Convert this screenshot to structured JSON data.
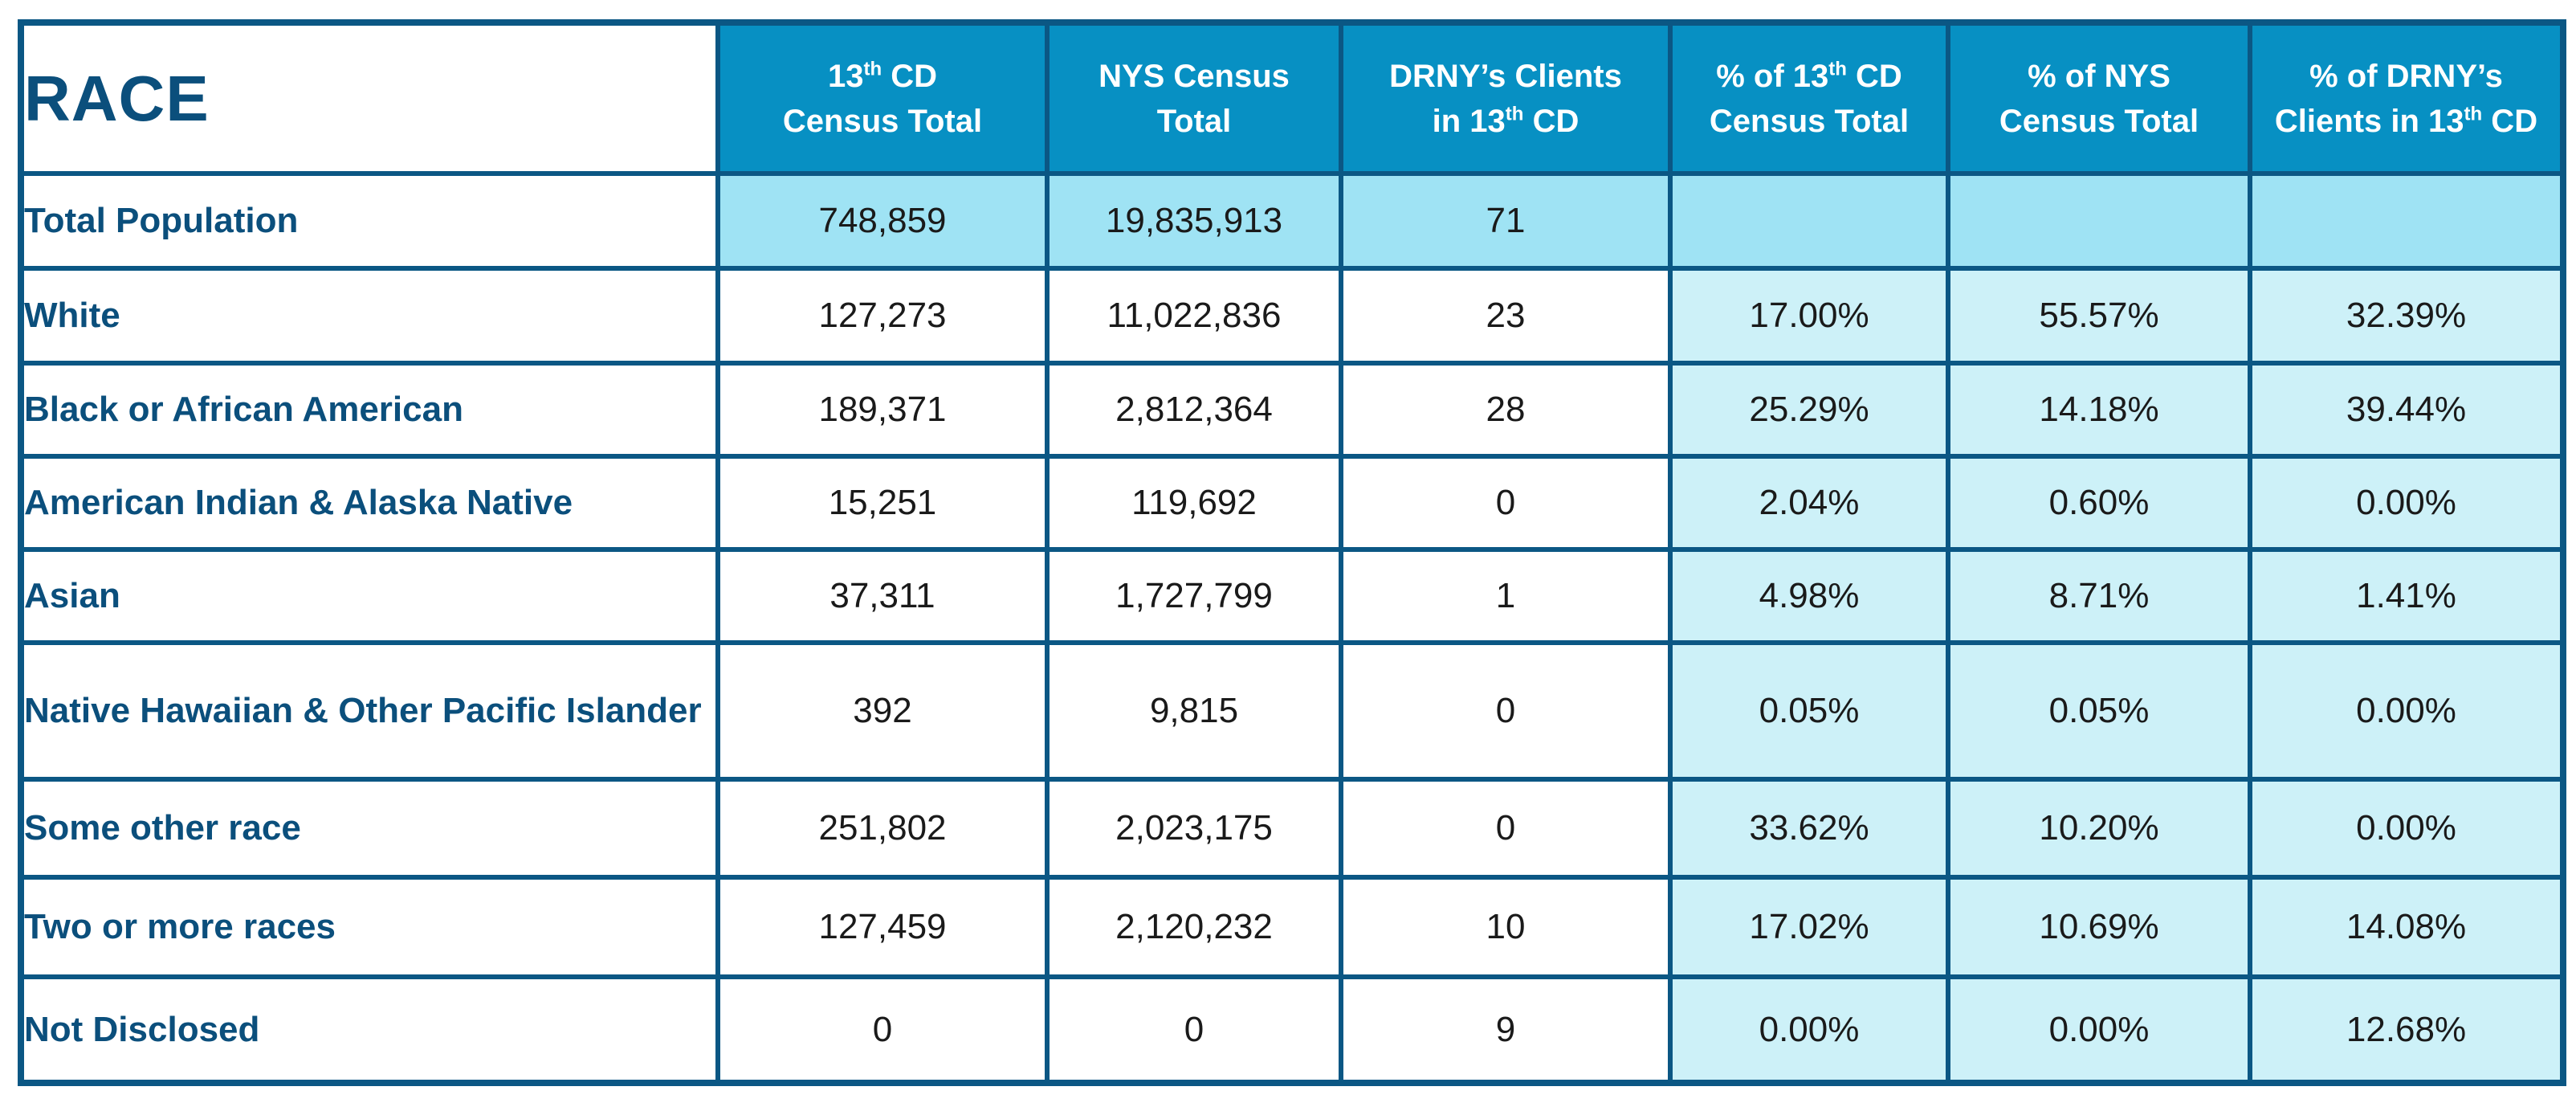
{
  "table": {
    "title": "RACE",
    "headers": [
      {
        "lines": [
          {
            "main": "13",
            "sup": "th",
            "rest": " CD"
          },
          {
            "main": "Census Total",
            "sup": "",
            "rest": ""
          }
        ]
      },
      {
        "lines": [
          {
            "main": "NYS Census",
            "sup": "",
            "rest": ""
          },
          {
            "main": "Total",
            "sup": "",
            "rest": ""
          }
        ]
      },
      {
        "lines": [
          {
            "main": "DRNY’s Clients",
            "sup": "",
            "rest": ""
          },
          {
            "main": "in 13",
            "sup": "th",
            "rest": " CD"
          }
        ]
      },
      {
        "lines": [
          {
            "main": "% of 13",
            "sup": "th",
            "rest": " CD"
          },
          {
            "main": "Census Total",
            "sup": "",
            "rest": ""
          }
        ]
      },
      {
        "lines": [
          {
            "main": "% of NYS",
            "sup": "",
            "rest": ""
          },
          {
            "main": "Census Total",
            "sup": "",
            "rest": ""
          }
        ]
      },
      {
        "lines": [
          {
            "main": "% of DRNY’s",
            "sup": "",
            "rest": ""
          },
          {
            "main": "Clients in 13",
            "sup": "th",
            "rest": " CD"
          }
        ]
      }
    ],
    "rows": [
      {
        "label": "Total Population",
        "cells": [
          "748,859",
          "19,835,913",
          "71",
          "",
          "",
          ""
        ]
      },
      {
        "label": "White",
        "cells": [
          "127,273",
          "11,022,836",
          "23",
          "17.00%",
          "55.57%",
          "32.39%"
        ]
      },
      {
        "label": "Black or African American",
        "cells": [
          "189,371",
          "2,812,364",
          "28",
          "25.29%",
          "14.18%",
          "39.44%"
        ]
      },
      {
        "label": "American Indian & Alaska Native",
        "cells": [
          "15,251",
          "119,692",
          "0",
          "2.04%",
          "0.60%",
          "0.00%"
        ]
      },
      {
        "label": "Asian",
        "cells": [
          "37,311",
          "1,727,799",
          "1",
          "4.98%",
          "8.71%",
          "1.41%"
        ]
      },
      {
        "label": "Native Hawaiian & Other Pacific Islander",
        "cells": [
          "392",
          "9,815",
          "0",
          "0.05%",
          "0.05%",
          "0.00%"
        ]
      },
      {
        "label": "Some other race",
        "cells": [
          "251,802",
          "2,023,175",
          "0",
          "33.62%",
          "10.20%",
          "0.00%"
        ]
      },
      {
        "label": "Two or more races",
        "cells": [
          "127,459",
          "2,120,232",
          "10",
          "17.02%",
          "10.69%",
          "14.08%"
        ]
      },
      {
        "label": "Not Disclosed",
        "cells": [
          "0",
          "0",
          "9",
          "0.00%",
          "0.00%",
          "12.68%"
        ]
      }
    ]
  },
  "colors": {
    "border": "#0b5784",
    "header_bg": "#0790c3",
    "title_text": "#0b4f7c",
    "total_row_bg": "#9fe3f4",
    "pct_col_bg": "#cdf1f8"
  }
}
